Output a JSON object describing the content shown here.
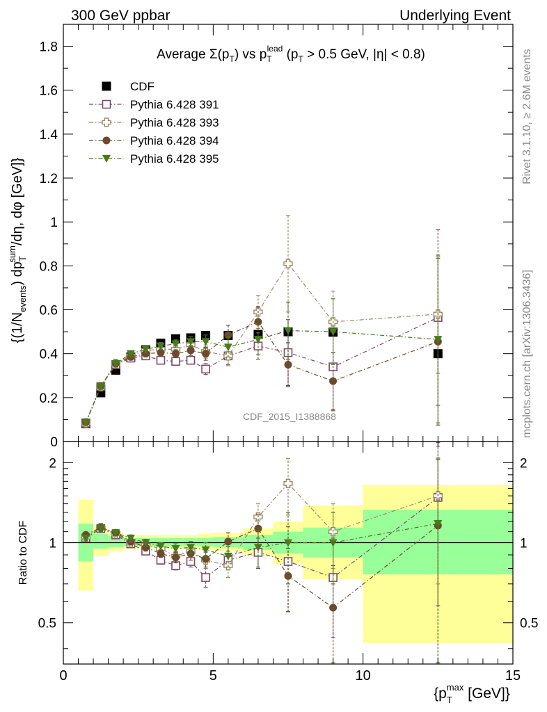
{
  "header": {
    "left": "300 GeV ppbar",
    "right": "Underlying Event"
  },
  "side": {
    "rivet": "Rivet 3.1.10, ≥ 2.6M events",
    "mcplots": "mcplots.cern.ch [arXiv:1306.3436]"
  },
  "watermark": "CDF_2015_I1388868",
  "chart_data": [
    {
      "type": "scatter",
      "title": "Average Σ(p_T) vs p_T^lead (p_T > 0.5 GeV, |η| < 0.8)",
      "ylabel": "{(1/N_events) dp_T^sum/dη, dφ [GeV]}",
      "xlim": [
        0,
        15
      ],
      "ylim": [
        0,
        1.9
      ],
      "yticks": [
        "0",
        "0.2",
        "0.4",
        "0.6",
        "0.8",
        "1",
        "1.2",
        "1.4",
        "1.6",
        "1.8"
      ],
      "legend_position": "top-left",
      "series": [
        {
          "name": "CDF",
          "color": "#000000",
          "marker": "square-filled",
          "line": "none",
          "x": [
            0.75,
            1.25,
            1.75,
            2.25,
            2.75,
            3.25,
            3.75,
            4.25,
            4.75,
            5.5,
            6.5,
            7.5,
            9.0,
            12.5
          ],
          "y": [
            0.082,
            0.222,
            0.325,
            0.385,
            0.418,
            0.448,
            0.468,
            0.472,
            0.483,
            0.483,
            0.488,
            0.5,
            0.498,
            0.4
          ]
        },
        {
          "name": "Pythia 6.428 391",
          "color": "#7a4a68",
          "marker": "square-open",
          "line": "dash-dot",
          "x": [
            0.75,
            1.25,
            1.75,
            2.25,
            2.75,
            3.25,
            3.75,
            4.25,
            4.75,
            5.5,
            6.5,
            7.5,
            9.0,
            12.5
          ],
          "y": [
            0.085,
            0.25,
            0.35,
            0.38,
            0.39,
            0.37,
            0.365,
            0.37,
            0.33,
            0.39,
            0.435,
            0.405,
            0.34,
            0.565
          ],
          "err": [
            0.005,
            0.008,
            0.01,
            0.01,
            0.012,
            0.012,
            0.014,
            0.018,
            0.025,
            0.04,
            0.06,
            0.15,
            0.2,
            0.4
          ]
        },
        {
          "name": "Pythia 6.428 393",
          "color": "#9a8a62",
          "marker": "cross-open",
          "line": "dash-dot",
          "x": [
            0.75,
            1.25,
            1.75,
            2.25,
            2.75,
            3.25,
            3.75,
            4.25,
            4.75,
            5.5,
            6.5,
            7.5,
            9.0,
            12.5
          ],
          "y": [
            0.085,
            0.25,
            0.355,
            0.39,
            0.415,
            0.42,
            0.42,
            0.44,
            0.41,
            0.39,
            0.59,
            0.81,
            0.545,
            0.58
          ],
          "err": [
            0.005,
            0.008,
            0.01,
            0.012,
            0.014,
            0.016,
            0.018,
            0.022,
            0.03,
            0.045,
            0.075,
            0.22,
            0.14,
            0.27
          ]
        },
        {
          "name": "Pythia 6.428 394",
          "color": "#6b4a2e",
          "marker": "circle-filled",
          "line": "dash-dot",
          "x": [
            0.75,
            1.25,
            1.75,
            2.25,
            2.75,
            3.25,
            3.75,
            4.25,
            4.75,
            5.5,
            6.5,
            7.5,
            9.0,
            12.5
          ],
          "y": [
            0.088,
            0.252,
            0.355,
            0.385,
            0.4,
            0.405,
            0.4,
            0.415,
            0.4,
            0.485,
            0.545,
            0.35,
            0.275,
            0.455
          ],
          "err": [
            0.005,
            0.008,
            0.01,
            0.012,
            0.014,
            0.016,
            0.018,
            0.022,
            0.03,
            0.045,
            0.07,
            0.1,
            0.13,
            0.38
          ]
        },
        {
          "name": "Pythia 6.428 395",
          "color": "#4a7a1a",
          "marker": "triangle-down-filled",
          "line": "dash-dot",
          "x": [
            0.75,
            1.25,
            1.75,
            2.25,
            2.75,
            3.25,
            3.75,
            4.25,
            4.75,
            5.5,
            6.5,
            7.5,
            9.0,
            12.5
          ],
          "y": [
            0.085,
            0.25,
            0.355,
            0.4,
            0.42,
            0.435,
            0.445,
            0.455,
            0.455,
            0.43,
            0.465,
            0.505,
            0.5,
            0.465
          ],
          "err": [
            0.005,
            0.008,
            0.01,
            0.012,
            0.014,
            0.016,
            0.018,
            0.022,
            0.03,
            0.045,
            0.07,
            0.13,
            0.15,
            0.38
          ]
        }
      ]
    },
    {
      "type": "scatter",
      "ylabel": "Ratio to CDF",
      "xlabel": "{p_T^max [GeV]}",
      "xlim": [
        0,
        15
      ],
      "ylim": [
        0.35,
        2.4
      ],
      "yscale": "log",
      "xticks": [
        "0",
        "5",
        "10",
        "15"
      ],
      "yticks": [
        "0.5",
        "1",
        "2"
      ],
      "reference_line": 1,
      "uncertainty_bands": {
        "edges": [
          0.5,
          1.0,
          1.5,
          2.0,
          2.5,
          3.0,
          3.5,
          4.0,
          4.5,
          5.0,
          6.0,
          7.0,
          8.0,
          10.0,
          15.0
        ],
        "inner_color": "#99ff99",
        "outer_color": "#ffff99",
        "inner": [
          [
            0.85,
            1.18
          ],
          [
            0.95,
            1.08
          ],
          [
            0.96,
            1.06
          ],
          [
            0.97,
            1.04
          ],
          [
            0.97,
            1.04
          ],
          [
            0.97,
            1.04
          ],
          [
            0.97,
            1.04
          ],
          [
            0.97,
            1.04
          ],
          [
            0.97,
            1.04
          ],
          [
            0.96,
            1.05
          ],
          [
            0.94,
            1.07
          ],
          [
            0.91,
            1.1
          ],
          [
            0.88,
            1.14
          ],
          [
            0.76,
            1.33
          ]
        ],
        "outer": [
          [
            0.66,
            1.45
          ],
          [
            0.89,
            1.15
          ],
          [
            0.93,
            1.09
          ],
          [
            0.95,
            1.07
          ],
          [
            0.95,
            1.07
          ],
          [
            0.95,
            1.07
          ],
          [
            0.95,
            1.07
          ],
          [
            0.95,
            1.07
          ],
          [
            0.94,
            1.08
          ],
          [
            0.93,
            1.09
          ],
          [
            0.89,
            1.13
          ],
          [
            0.83,
            1.2
          ],
          [
            0.73,
            1.38
          ],
          [
            0.42,
            1.65
          ]
        ]
      },
      "series": [
        {
          "name": "Pythia 6.428 391",
          "color": "#7a4a68",
          "marker": "square-open",
          "x": [
            0.75,
            1.25,
            1.75,
            2.25,
            2.75,
            3.25,
            3.75,
            4.25,
            4.75,
            5.5,
            6.5,
            7.5,
            9.0,
            12.5
          ],
          "y": [
            1.04,
            1.13,
            1.07,
            0.99,
            0.93,
            0.86,
            0.82,
            0.85,
            0.74,
            0.86,
            0.92,
            0.85,
            0.74,
            1.48
          ],
          "err": [
            0.02,
            0.03,
            0.03,
            0.03,
            0.03,
            0.03,
            0.03,
            0.04,
            0.06,
            0.07,
            0.12,
            0.3,
            0.3,
            0.9
          ]
        },
        {
          "name": "Pythia 6.428 393",
          "color": "#9a8a62",
          "marker": "cross-open",
          "x": [
            0.75,
            1.25,
            1.75,
            2.25,
            2.75,
            3.25,
            3.75,
            4.25,
            4.75,
            5.5,
            6.5,
            7.5,
            9.0,
            12.5
          ],
          "y": [
            1.05,
            1.14,
            1.08,
            1.0,
            0.98,
            0.95,
            0.89,
            0.93,
            0.86,
            0.82,
            1.25,
            1.67,
            1.1,
            1.5
          ],
          "err": [
            0.02,
            0.03,
            0.03,
            0.03,
            0.03,
            0.03,
            0.04,
            0.05,
            0.06,
            0.08,
            0.15,
            0.4,
            0.3,
            0.8
          ]
        },
        {
          "name": "Pythia 6.428 394",
          "color": "#6b4a2e",
          "marker": "circle-filled",
          "x": [
            0.75,
            1.25,
            1.75,
            2.25,
            2.75,
            3.25,
            3.75,
            4.25,
            4.75,
            5.5,
            6.5,
            7.5,
            9.0,
            12.5
          ],
          "y": [
            1.07,
            1.14,
            1.09,
            1.01,
            0.96,
            0.91,
            0.88,
            0.91,
            0.87,
            1.01,
            1.13,
            0.75,
            0.57,
            1.16
          ],
          "err": [
            0.02,
            0.03,
            0.03,
            0.03,
            0.03,
            0.03,
            0.04,
            0.05,
            0.06,
            0.08,
            0.15,
            0.2,
            0.25,
            0.9
          ]
        },
        {
          "name": "Pythia 6.428 395",
          "color": "#4a7a1a",
          "marker": "triangle-down-filled",
          "x": [
            0.75,
            1.25,
            1.75,
            2.25,
            2.75,
            3.25,
            3.75,
            4.25,
            4.75,
            5.5,
            6.5,
            7.5,
            9.0,
            12.5
          ],
          "y": [
            1.04,
            1.13,
            1.09,
            1.04,
            1.0,
            0.97,
            0.95,
            0.96,
            0.94,
            0.89,
            0.96,
            1.0,
            1.0,
            1.18
          ],
          "err": [
            0.02,
            0.03,
            0.03,
            0.03,
            0.03,
            0.03,
            0.04,
            0.05,
            0.06,
            0.08,
            0.15,
            0.3,
            0.3,
            0.9
          ]
        }
      ]
    }
  ]
}
